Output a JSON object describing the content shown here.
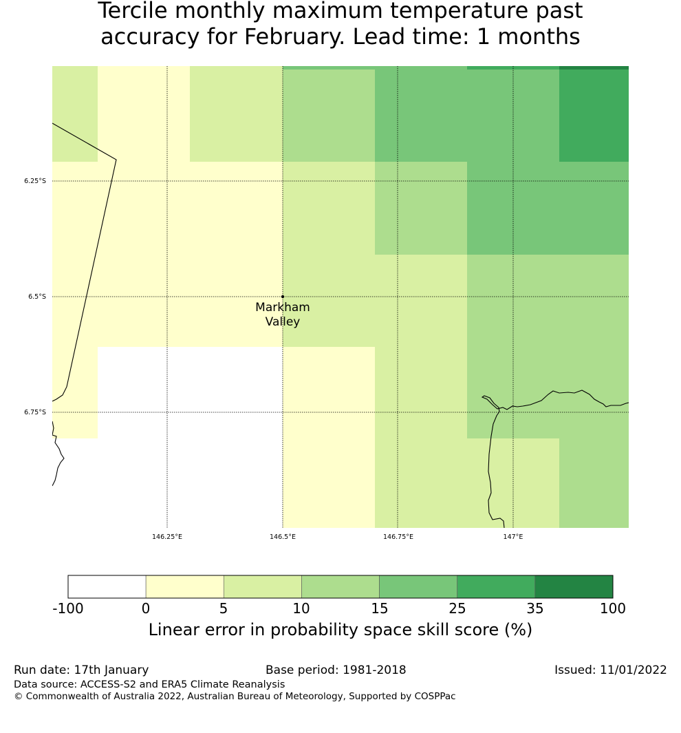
{
  "title_line1": "Tercile monthly maximum temperature past",
  "title_line2": "accuracy for February. Lead time: 1 months",
  "map": {
    "lon_ticks": [
      "146.25°E",
      "146.5°E",
      "146.75°E",
      "147°E"
    ],
    "lat_ticks": [
      "6.25°S",
      "6.5°S",
      "6.75°S"
    ],
    "place_label_line1": "Markham",
    "place_label_line2": "Valley"
  },
  "colorbar": {
    "ticks": [
      "-100",
      "0",
      "5",
      "10",
      "15",
      "25",
      "35",
      "100"
    ],
    "colors": [
      "#ffffff",
      "#ffffcc",
      "#d9f0a3",
      "#addd8e",
      "#78c679",
      "#41ab5d",
      "#238443"
    ],
    "label": "Linear error in probability space skill score (%)"
  },
  "footer": {
    "run_date": "Run date: 17th January",
    "base_period": "Base period: 1981-2018",
    "issued": "Issued: 11/01/2022",
    "data_source": "Data source: ACCESS-S2 and ERA5 Climate Reanalysis",
    "copyright": "© Commonwealth of Australia 2022, Australian Bureau of Meteorology, Supported by COSPPac"
  }
}
